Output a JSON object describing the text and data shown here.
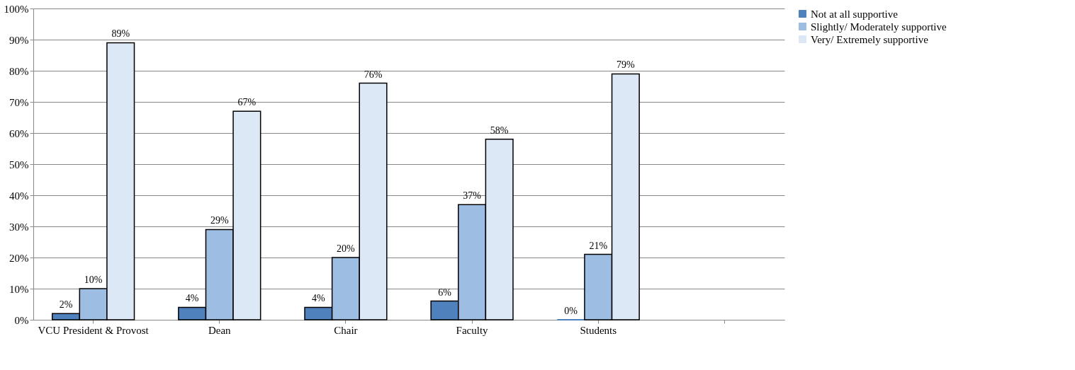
{
  "chart_data": {
    "type": "bar",
    "categories": [
      "VCU President & Provost",
      "Dean",
      "Chair",
      "Faculty",
      "Students",
      null
    ],
    "series": [
      {
        "name": "Not at all supportive",
        "color": "#4f81bd",
        "values": [
          2,
          4,
          4,
          6,
          0,
          null
        ],
        "value_labels": [
          "2%",
          "4%",
          "4%",
          "6%",
          "0%",
          null
        ]
      },
      {
        "name": "Slightly/ Moderately supportive",
        "color": "#9dbde3",
        "values": [
          10,
          29,
          20,
          37,
          21,
          null
        ],
        "value_labels": [
          "10%",
          "29%",
          "20%",
          "37%",
          "21%",
          null
        ]
      },
      {
        "name": "Very/ Extremely supportive",
        "color": "#dce8f5",
        "values": [
          89,
          67,
          76,
          58,
          79,
          null
        ],
        "value_labels": [
          "89%",
          "67%",
          "76%",
          "58%",
          "79%",
          null
        ]
      }
    ],
    "ylim": [
      0,
      100
    ],
    "yticks": [
      {
        "value": 0,
        "label": "0%"
      },
      {
        "value": 10,
        "label": "10%"
      },
      {
        "value": 20,
        "label": "20%"
      },
      {
        "value": 30,
        "label": "30%"
      },
      {
        "value": 40,
        "label": "40%"
      },
      {
        "value": 50,
        "label": "50%"
      },
      {
        "value": 60,
        "label": "60%"
      },
      {
        "value": 70,
        "label": "70%"
      },
      {
        "value": 80,
        "label": "80%"
      },
      {
        "value": 90,
        "label": "90%"
      },
      {
        "value": 100,
        "label": "100%"
      }
    ],
    "grid": "y",
    "legend": "right"
  }
}
